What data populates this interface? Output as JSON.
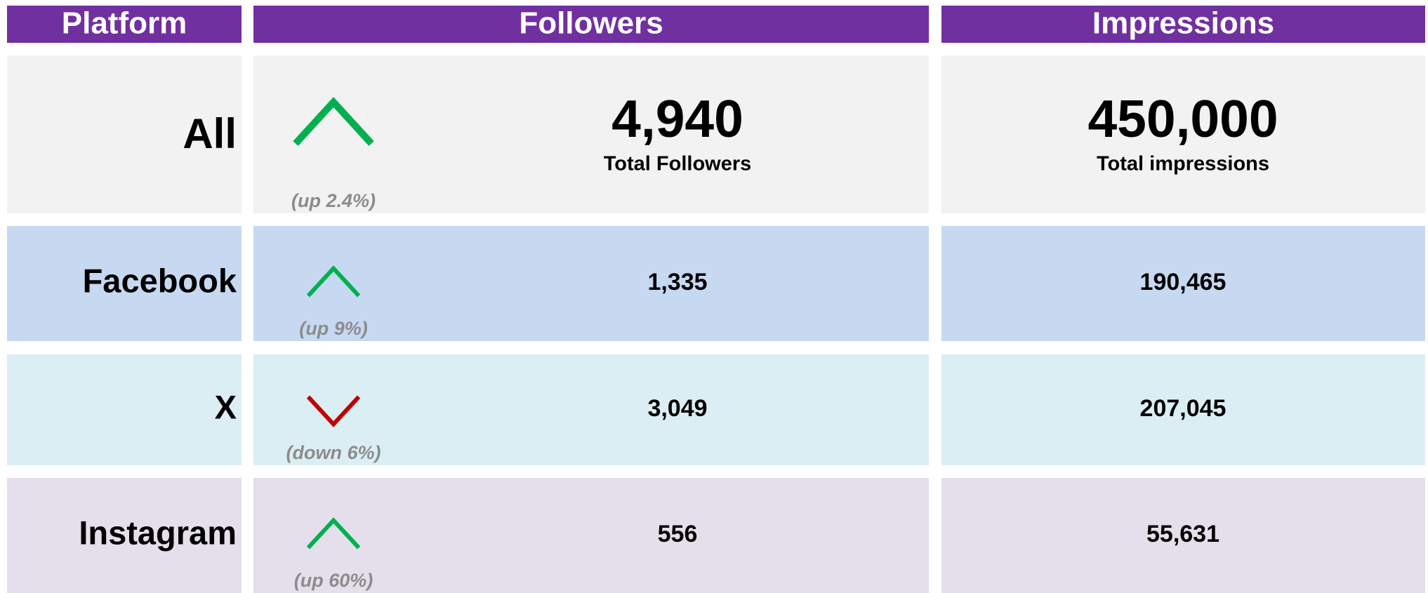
{
  "header": {
    "columns": [
      "Platform",
      "Followers",
      "Impressions"
    ]
  },
  "rows": [
    {
      "platform": "All",
      "trend": "up",
      "change": "(up 2.4%)",
      "followers": "4,940",
      "followers_label": "Total Followers",
      "impressions": "450,000",
      "impressions_label": "Total impressions",
      "color": "#f2f2f2"
    },
    {
      "platform": "Facebook",
      "trend": "up",
      "change": "(up 9%)",
      "followers": "1,335",
      "impressions": "190,465",
      "color": "#c6d9f1"
    },
    {
      "platform": "X",
      "trend": "down",
      "change": "(down 6%)",
      "followers": "3,049",
      "impressions": "207,045",
      "color": "#dbeef4"
    },
    {
      "platform": "Instagram",
      "trend": "up",
      "change": "(up 60%)",
      "followers": "556",
      "impressions": "55,631",
      "color": "#e5dfec"
    }
  ],
  "trend_colors": {
    "up": "#00b050",
    "down": "#c00000"
  },
  "header_color": "#7030a0"
}
